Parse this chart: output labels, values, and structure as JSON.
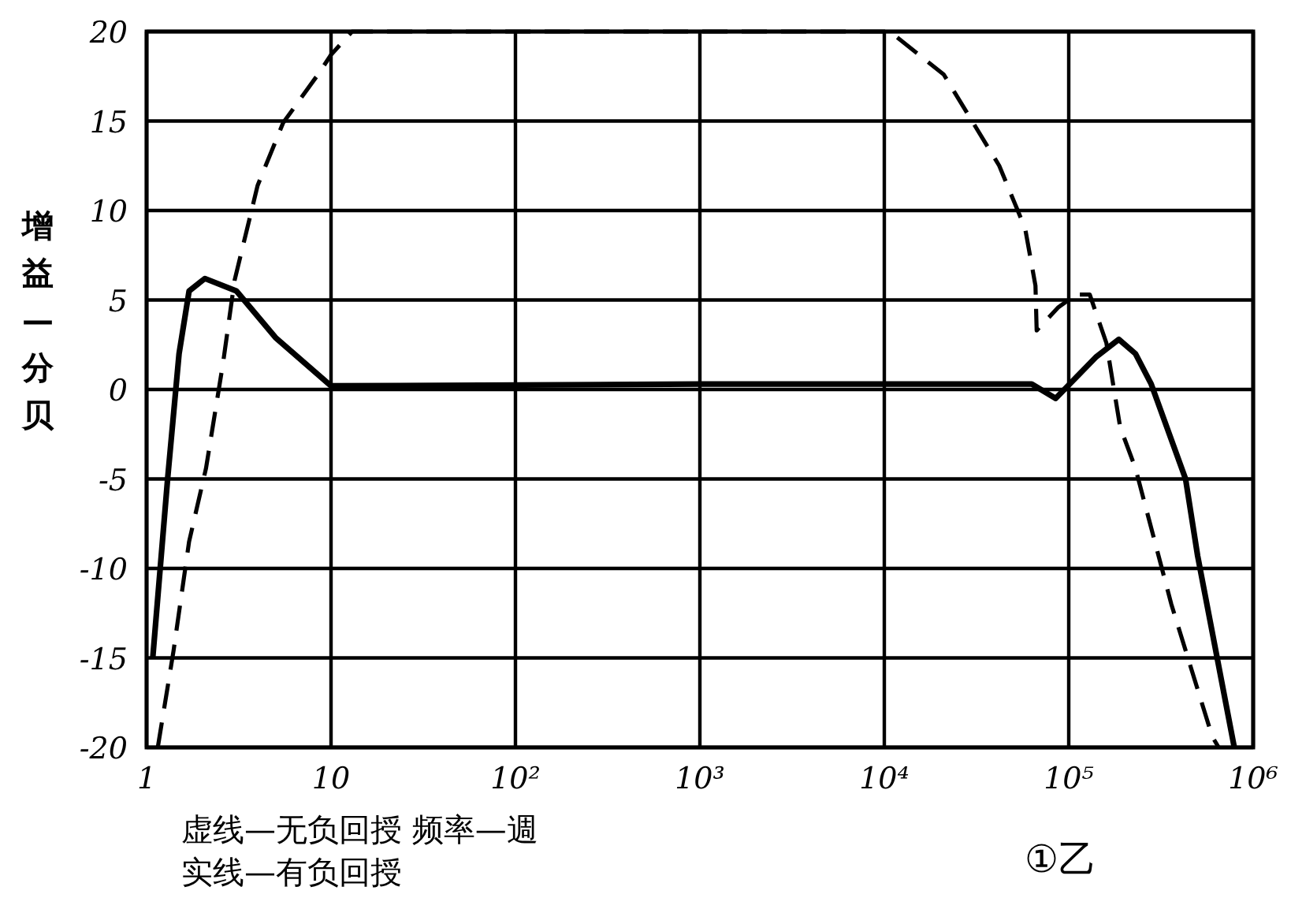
{
  "chart_data": {
    "type": "line",
    "log": "x",
    "grid": true,
    "ylabel": "增益—分贝",
    "xlim": [
      1,
      1000000
    ],
    "xticks": [
      1,
      10,
      {
        "value": 100,
        "label": "10²"
      },
      {
        "value": 1000,
        "label": "10³"
      },
      {
        "value": 10000,
        "label": "10⁴"
      },
      {
        "value": 100000,
        "label": "10⁵"
      },
      {
        "value": 1000000,
        "label": "10⁶"
      }
    ],
    "ylim": [
      -20,
      20
    ],
    "yticks": [
      20,
      15,
      10,
      5,
      0,
      -5,
      -10,
      -15,
      -20
    ],
    "series": [
      {
        "color": "#000000",
        "line_style": "dashed",
        "x": [
          1.15,
          1.4,
          1.7,
          2.1,
          2.6,
          3.0,
          4.0,
          5.5,
          8.5,
          10,
          13,
          10700,
          21000,
          42000,
          58000,
          66000,
          67000,
          88000,
          110000,
          130000,
          160000,
          190000,
          230000,
          360000,
          600000,
          650000
        ],
        "values": [
          -20,
          -14.6,
          -8.5,
          -4.4,
          1.5,
          6.1,
          11.4,
          14.9,
          17.6,
          18.7,
          20,
          20,
          17.6,
          12.5,
          9.0,
          5.8,
          3.3,
          4.6,
          5.3,
          5.3,
          2.6,
          -2.1,
          -4.4,
          -12,
          -19.4,
          -20
        ]
      },
      {
        "color": "#000000",
        "line_style": "solid",
        "x": [
          1.08,
          1.3,
          1.5,
          1.7,
          2.07,
          3.07,
          5.0,
          10,
          1000,
          63000,
          85000,
          140000,
          187000,
          230000,
          280000,
          430000,
          500000,
          790000
        ],
        "values": [
          -15,
          -5,
          2,
          5.5,
          6.2,
          5.5,
          2.9,
          0.2,
          0.3,
          0.3,
          -0.5,
          1.8,
          2.8,
          2.0,
          0.3,
          -5,
          -9.3,
          -20
        ]
      }
    ],
    "annotations": [
      "虚线—无负回授 频率—週",
      "实线—有负回授",
      "①乙"
    ]
  }
}
